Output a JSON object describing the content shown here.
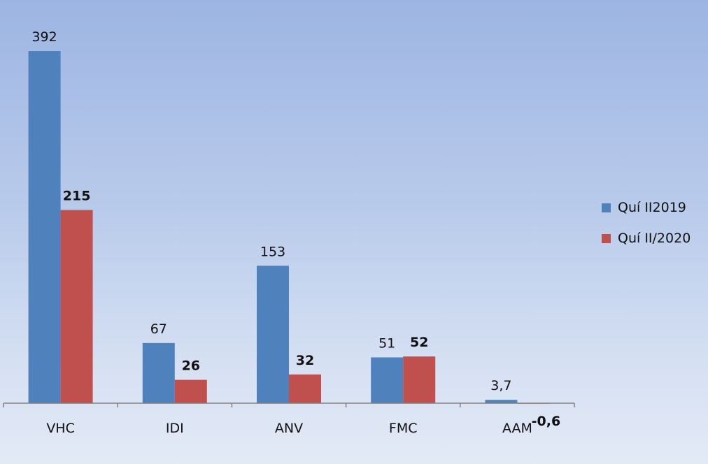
{
  "chart_data": {
    "type": "bar",
    "title": "",
    "xlabel": "",
    "ylabel": "",
    "categories": [
      "VHC",
      "IDI",
      "ANV",
      "FMC",
      "AAM"
    ],
    "series": [
      {
        "name": "Quí II2019",
        "color": "#4f81bd",
        "values": [
          392,
          67,
          153,
          51,
          3.7
        ],
        "labels": [
          "392",
          "67",
          "153",
          "51",
          "3,7"
        ],
        "label_bold": false
      },
      {
        "name": "Quí II/2020",
        "color": "#c0504d",
        "values": [
          215,
          26,
          32,
          52,
          -0.6
        ],
        "labels": [
          "215",
          "26",
          "32",
          "52",
          "-0,6"
        ],
        "label_bold": true
      }
    ],
    "ylim": [
      0,
      392
    ],
    "grid": false,
    "legend_position": "right"
  }
}
